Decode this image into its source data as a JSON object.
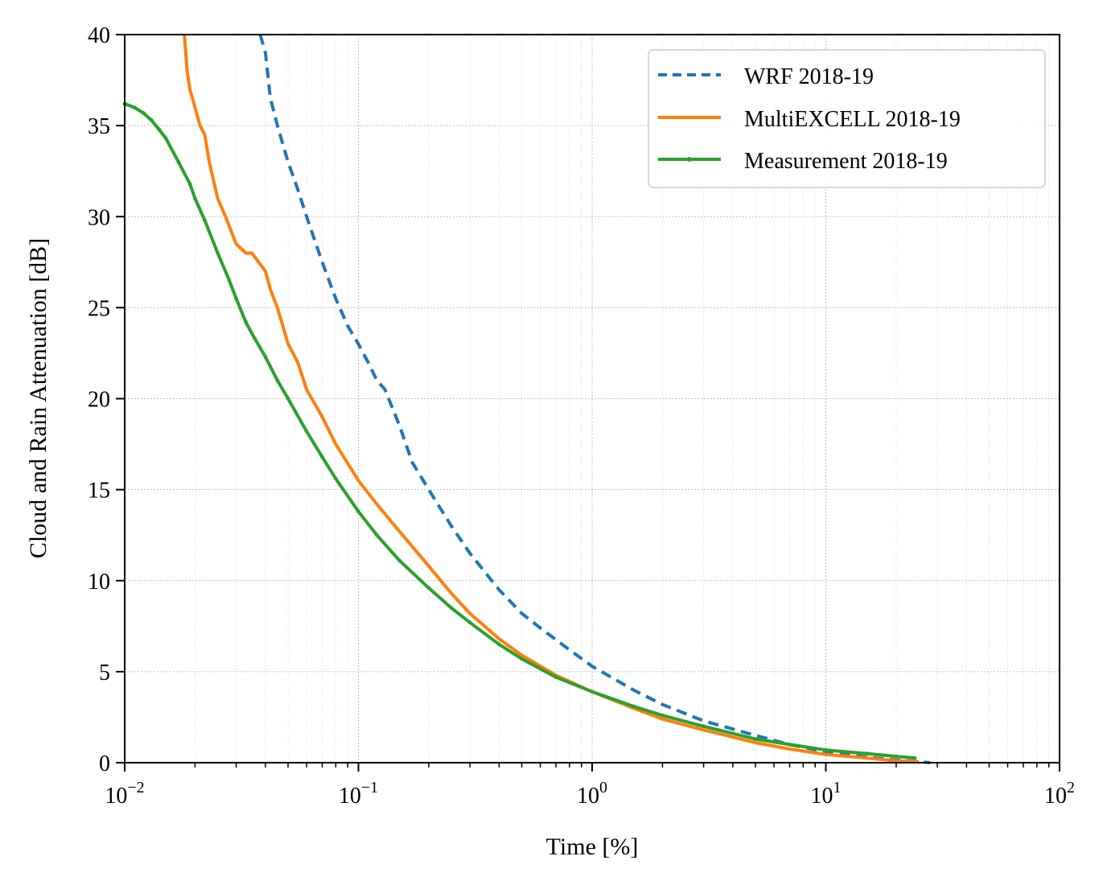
{
  "chart_data": {
    "type": "line",
    "title": "",
    "xlabel": "Time [%]",
    "ylabel": "Cloud and Rain Attenuation [dB]",
    "xscale": "log",
    "xlim": [
      0.01,
      100
    ],
    "ylim": [
      0,
      40
    ],
    "grid": true,
    "legend_position": "top-right",
    "x_ticks": [
      {
        "value": 0.01,
        "base": "10",
        "exp": "−2"
      },
      {
        "value": 0.1,
        "base": "10",
        "exp": "−1"
      },
      {
        "value": 1,
        "base": "10",
        "exp": "0"
      },
      {
        "value": 10,
        "base": "10",
        "exp": "1"
      },
      {
        "value": 100,
        "base": "10",
        "exp": "2"
      }
    ],
    "y_ticks": [
      {
        "value": 0,
        "label": "0"
      },
      {
        "value": 5,
        "label": "5"
      },
      {
        "value": 10,
        "label": "10"
      },
      {
        "value": 15,
        "label": "15"
      },
      {
        "value": 20,
        "label": "20"
      },
      {
        "value": 25,
        "label": "25"
      },
      {
        "value": 30,
        "label": "30"
      },
      {
        "value": 35,
        "label": "35"
      },
      {
        "value": 40,
        "label": "40"
      }
    ],
    "series": [
      {
        "name": "WRF 2018-19",
        "color": "#1f77b4",
        "style": "dashed",
        "x": [
          0.038,
          0.04,
          0.042,
          0.045,
          0.05,
          0.055,
          0.06,
          0.07,
          0.08,
          0.09,
          0.1,
          0.11,
          0.12,
          0.13,
          0.15,
          0.17,
          0.2,
          0.25,
          0.3,
          0.4,
          0.5,
          0.6,
          0.8,
          1.0,
          1.5,
          2.0,
          3.0,
          5.0,
          7.0,
          10,
          15,
          20,
          25,
          28
        ],
        "y": [
          40,
          39,
          36.5,
          35,
          33,
          31.5,
          30,
          27.5,
          25.5,
          24,
          23,
          22,
          21,
          20.5,
          18.5,
          16.5,
          15,
          13,
          11.5,
          9.5,
          8.2,
          7.4,
          6.2,
          5.3,
          4.0,
          3.2,
          2.3,
          1.5,
          1.0,
          0.6,
          0.3,
          0.15,
          0.05,
          0
        ]
      },
      {
        "name": "MultiEXCELL 2018-19",
        "color": "#ff7f0e",
        "style": "solid",
        "x": [
          0.018,
          0.0185,
          0.019,
          0.02,
          0.021,
          0.022,
          0.023,
          0.025,
          0.027,
          0.03,
          0.033,
          0.035,
          0.04,
          0.042,
          0.045,
          0.05,
          0.055,
          0.06,
          0.07,
          0.08,
          0.1,
          0.12,
          0.15,
          0.2,
          0.25,
          0.3,
          0.4,
          0.5,
          0.7,
          1.0,
          1.5,
          2.0,
          3.0,
          5.0,
          7.0,
          10,
          15,
          20,
          25
        ],
        "y": [
          40,
          38,
          37,
          36,
          35,
          34.5,
          33,
          31,
          30,
          28.5,
          28,
          28,
          27,
          26,
          25,
          23,
          22,
          20.5,
          19,
          17.5,
          15.5,
          14.2,
          12.7,
          10.8,
          9.3,
          8.2,
          6.8,
          5.9,
          4.8,
          3.9,
          3.0,
          2.4,
          1.8,
          1.1,
          0.75,
          0.45,
          0.25,
          0.1,
          0.05
        ]
      },
      {
        "name": "Measurement 2018-19",
        "color": "#2ca02c",
        "style": "solid-dots",
        "x": [
          0.01,
          0.011,
          0.012,
          0.013,
          0.014,
          0.015,
          0.017,
          0.019,
          0.02,
          0.022,
          0.025,
          0.028,
          0.03,
          0.033,
          0.036,
          0.04,
          0.045,
          0.05,
          0.06,
          0.07,
          0.08,
          0.1,
          0.12,
          0.15,
          0.2,
          0.25,
          0.3,
          0.4,
          0.5,
          0.7,
          1.0,
          1.5,
          2.0,
          3.0,
          5.0,
          7.0,
          10,
          15,
          20,
          24
        ],
        "y": [
          36.2,
          36,
          35.7,
          35.3,
          34.8,
          34.3,
          33,
          31.8,
          31,
          29.8,
          28,
          26.5,
          25.5,
          24.2,
          23.3,
          22.3,
          21,
          20,
          18.2,
          16.8,
          15.6,
          13.8,
          12.5,
          11.1,
          9.6,
          8.5,
          7.7,
          6.5,
          5.7,
          4.7,
          3.9,
          3.1,
          2.6,
          2.0,
          1.3,
          1.0,
          0.7,
          0.5,
          0.35,
          0.25
        ]
      }
    ]
  }
}
